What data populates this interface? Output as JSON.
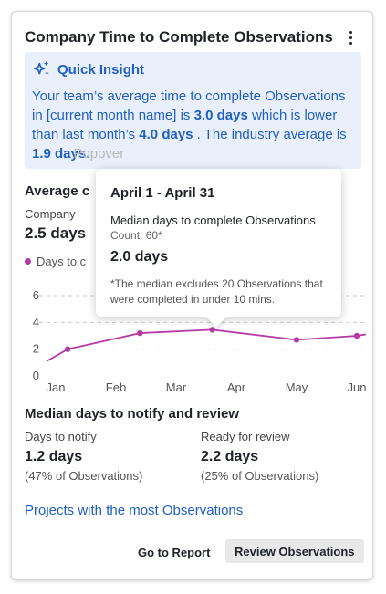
{
  "card": {
    "title": "Company Time to Complete Observations",
    "menu_icon": "more-vertical-icon"
  },
  "insight": {
    "icon": "sparkles-icon",
    "title": "Quick Insight",
    "text_1": "Your team’s average time to complete Observations in [current month name] is ",
    "value_1": "3.0 days",
    "text_2": " which is lower than last month’s ",
    "value_2": "4.0 days",
    "text_3": " . The industry average is ",
    "value_3": "1.9 days.",
    "ghost": "Popover"
  },
  "average": {
    "title": "Average c",
    "company_label": "Company",
    "company_value": "2.5 days"
  },
  "chart_data": {
    "type": "line",
    "categories": [
      "Jan",
      "Feb",
      "Mar",
      "Apr",
      "May",
      "Jun"
    ],
    "series": [
      {
        "name": "Days to c",
        "color": "#b53aa5",
        "points": [
          [
            -0.15,
            1.1
          ],
          [
            0.2,
            2.0
          ],
          [
            1.4,
            3.2
          ],
          [
            2.6,
            3.45
          ],
          [
            4.0,
            2.7
          ],
          [
            5.0,
            3.0
          ],
          [
            5.15,
            3.1
          ]
        ],
        "marked_points": [
          [
            0.2,
            2.0
          ],
          [
            1.4,
            3.2
          ],
          [
            2.6,
            3.45
          ],
          [
            4.0,
            2.7
          ],
          [
            5.0,
            3.0
          ]
        ]
      }
    ],
    "yticks": [
      0,
      2,
      4,
      6
    ],
    "ylim": [
      0,
      6
    ],
    "grid": "dashed horizontal at 2, 4, 6",
    "legend": "top-left"
  },
  "tooltip": {
    "range": "April 1 - April 31",
    "metric": "Median days to complete Observations",
    "count": "Count: 60*",
    "value": "2.0 days",
    "note": "*The median excludes 20 Observations that were completed in under 10 mins."
  },
  "median": {
    "title": "Median days to notify and review",
    "notify": {
      "label": "Days to notify",
      "value": "1.2 days",
      "pct": "(47% of Observations)"
    },
    "review": {
      "label": "Ready for review",
      "value": "2.2 days",
      "pct": "(25% of Observations)"
    }
  },
  "links": {
    "projects": "Projects with the most Observations"
  },
  "actions": {
    "go_report": "Go to Report",
    "review": "Review Observations"
  }
}
